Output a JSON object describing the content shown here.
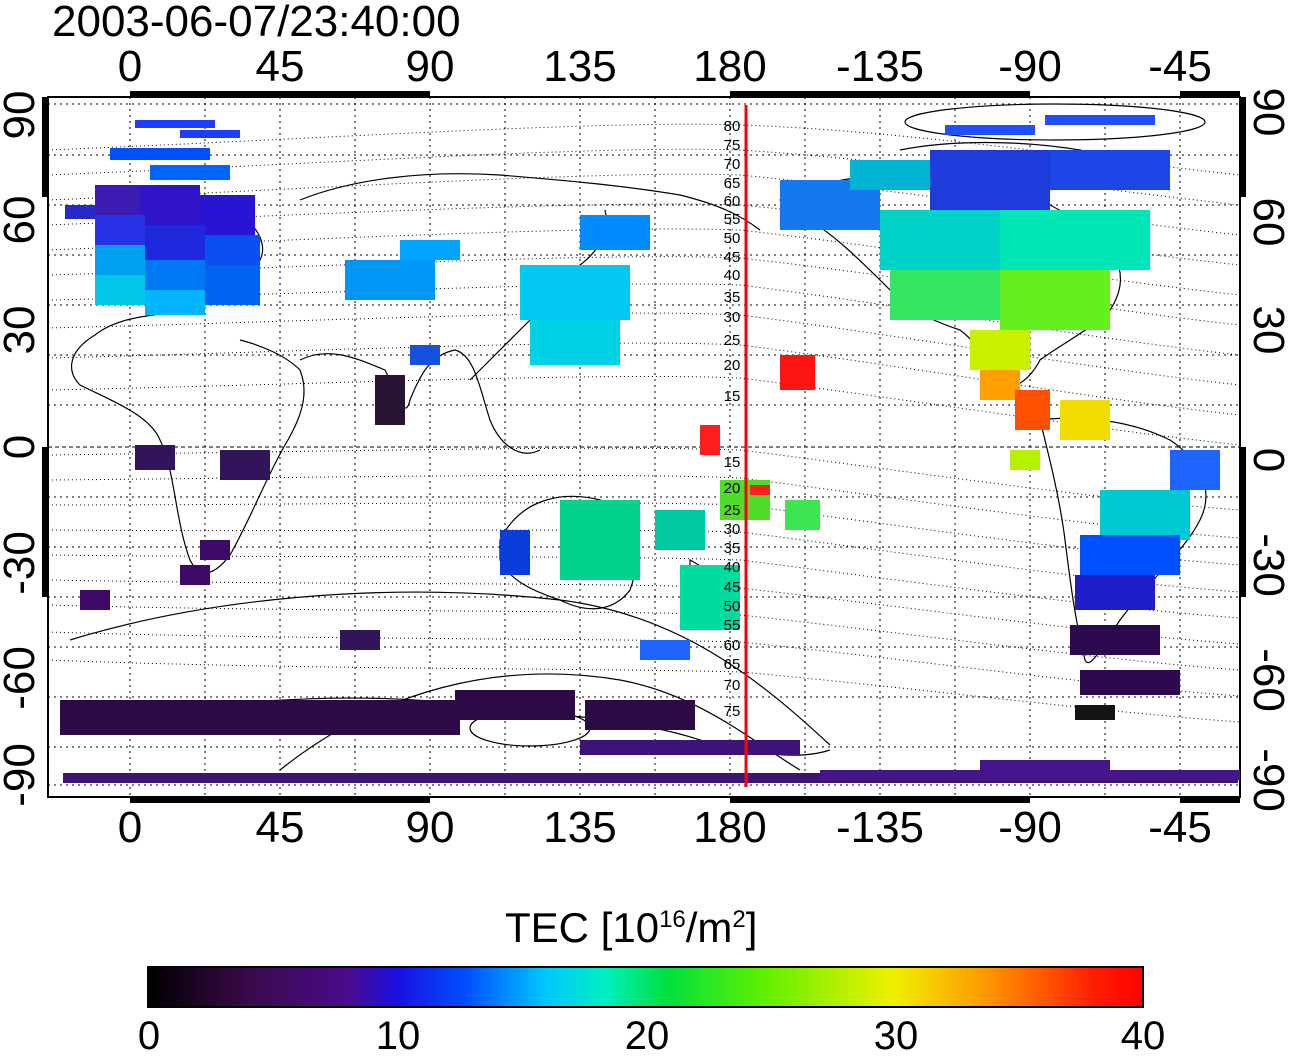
{
  "title": "2003-06-07/23:40:00",
  "x_ticks_top": [
    "0",
    "45",
    "90",
    "135",
    "180",
    "-135",
    "-90",
    "-45"
  ],
  "x_ticks_bottom": [
    "0",
    "45",
    "90",
    "135",
    "180",
    "-135",
    "-90",
    "-45"
  ],
  "y_ticks_left": [
    "90",
    "60",
    "30",
    "0",
    "-30",
    "-60",
    "-90"
  ],
  "y_ticks_right": [
    "90",
    "60",
    "30",
    "0",
    "-30",
    "-60",
    "-90"
  ],
  "contour_labels": [
    "80",
    "75",
    "70",
    "65",
    "60",
    "55",
    "50",
    "45",
    "40",
    "35",
    "30",
    "25",
    "20",
    "15",
    "15",
    "20",
    "25",
    "30",
    "35",
    "40",
    "45",
    "50",
    "55",
    "60",
    "65",
    "70",
    "75"
  ],
  "colorbar": {
    "label_main": "TEC  [10",
    "label_sup1": "16",
    "label_mid": "/m",
    "label_sup2": "2",
    "label_end": "]",
    "ticks": [
      "0",
      "10",
      "20",
      "30",
      "40"
    ],
    "range": [
      0,
      40
    ],
    "colors": [
      "#000000",
      "#4b0a8c",
      "#0050ff",
      "#00f0c0",
      "#00e040",
      "#f0f000",
      "#ff9000",
      "#ff0000"
    ]
  },
  "meridian_line": {
    "longitude": 185,
    "color": "#ff0000"
  }
}
